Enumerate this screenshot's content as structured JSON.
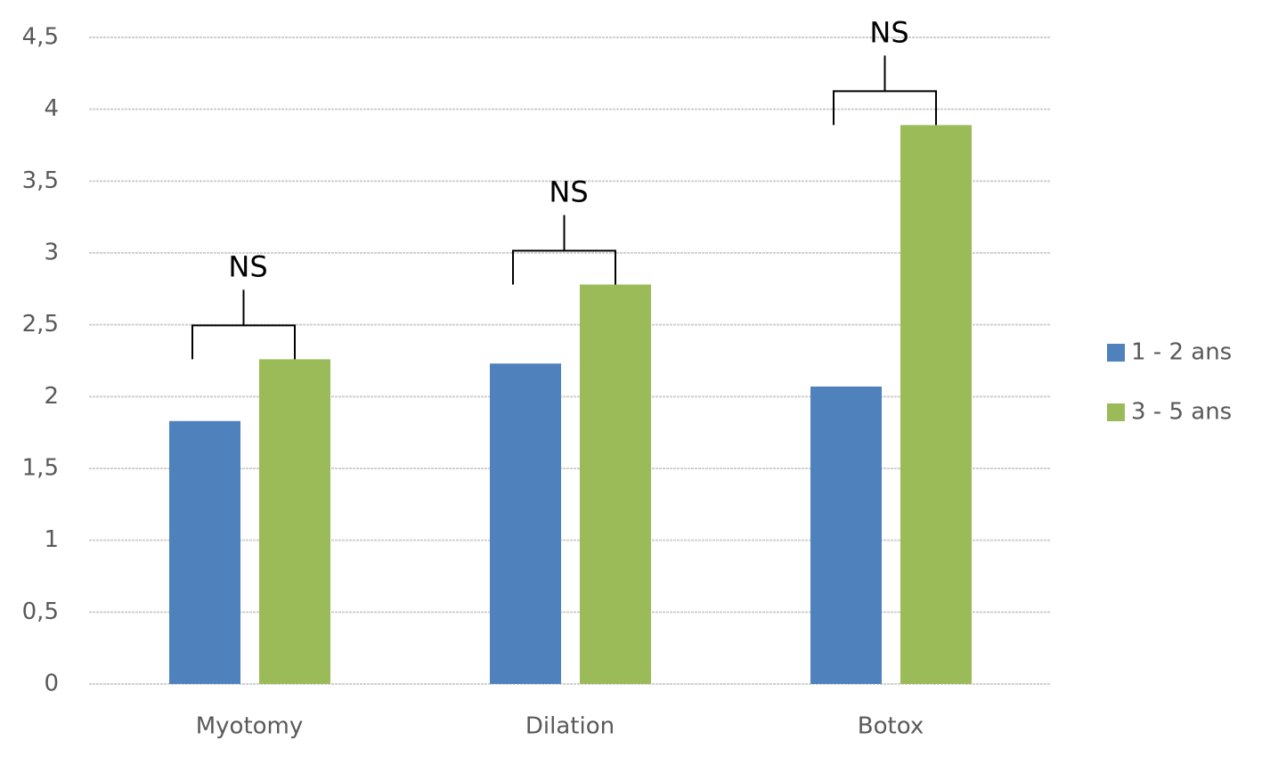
{
  "chart_data": {
    "type": "bar",
    "categories": [
      "Myotomy",
      "Dilation",
      "Botox"
    ],
    "series": [
      {
        "name": "1 - 2 ans",
        "color": "#4f81bd",
        "values": [
          1.83,
          2.23,
          2.07
        ]
      },
      {
        "name": "3 - 5 ans",
        "color": "#9bbb59",
        "values": [
          2.26,
          2.78,
          3.89
        ]
      }
    ],
    "annotations": [
      "NS",
      "NS",
      "NS"
    ],
    "ylim": [
      0,
      4.5
    ],
    "yticks": [
      0,
      {
        "value": 0.5,
        "label": "0,5"
      },
      1,
      {
        "value": 1.5,
        "label": "1,5"
      },
      2,
      {
        "value": 2.5,
        "label": "2,5"
      },
      3,
      {
        "value": 3.5,
        "label": "3,5"
      },
      4,
      {
        "value": 4.5,
        "label": "4,5"
      }
    ],
    "grid": true,
    "legend": "right"
  }
}
